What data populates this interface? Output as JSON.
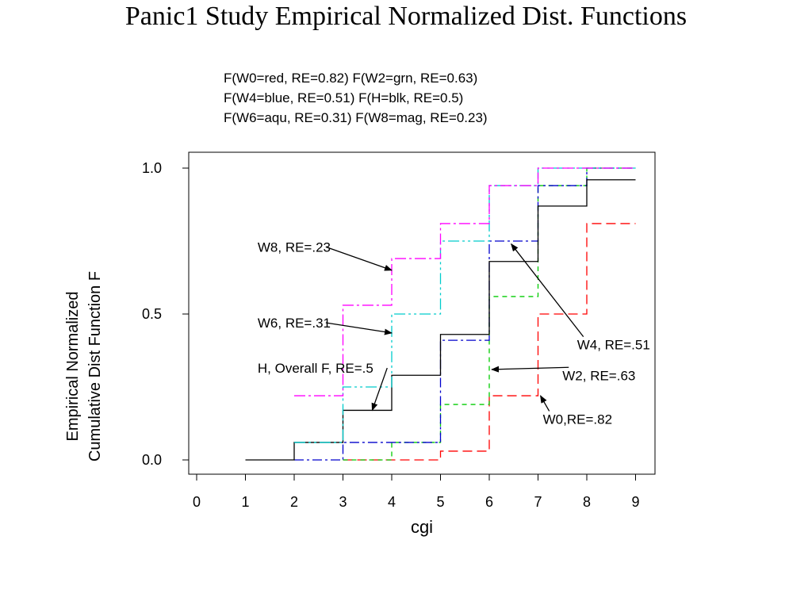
{
  "title": "Panic1 Study Empirical Normalized Dist. Functions",
  "subtitle_lines": [
    "F(W0=red, RE=0.82) F(W2=grn, RE=0.63)",
    "F(W4=blue, RE=0.51) F(H=blk, RE=0.5)",
    "F(W6=aqu, RE=0.31) F(W8=mag, RE=0.23)"
  ],
  "chart_data": {
    "type": "line",
    "step": true,
    "title": "Panic1 Study Empirical Normalized Dist. Functions",
    "xlabel": "cgi",
    "ylabel": [
      "Empirical Normalized",
      "Cumulative Dist Function F"
    ],
    "xlim": [
      0,
      9
    ],
    "ylim": [
      0,
      1
    ],
    "xticks": [
      0,
      1,
      2,
      3,
      4,
      5,
      6,
      7,
      8,
      9
    ],
    "yticks": [
      {
        "value": 0,
        "label": "0.0"
      },
      {
        "value": 0.5,
        "label": "0.5"
      },
      {
        "value": 1,
        "label": "1.0"
      }
    ],
    "series": [
      {
        "name": "W0",
        "color": "#ff0000",
        "dash": "12 6",
        "x": [
          3,
          5,
          6,
          7,
          8,
          9
        ],
        "y": [
          0.0,
          0.03,
          0.22,
          0.5,
          0.81,
          0.81
        ]
      },
      {
        "name": "W2",
        "color": "#00cc00",
        "dash": "6 5",
        "x": [
          3,
          4,
          5,
          6,
          7,
          8,
          9
        ],
        "y": [
          0.0,
          0.06,
          0.19,
          0.56,
          0.94,
          1.0,
          1.0
        ]
      },
      {
        "name": "W4",
        "color": "#0000cc",
        "dash": "12 4 3 4",
        "x": [
          2,
          3,
          5,
          6,
          7,
          8,
          9
        ],
        "y": [
          0.0,
          0.06,
          0.41,
          0.75,
          0.94,
          1.0,
          1.0
        ]
      },
      {
        "name": "H",
        "color": "#000000",
        "dash": "",
        "x": [
          1,
          2,
          3,
          4,
          5,
          6,
          7,
          8,
          9
        ],
        "y": [
          0.0,
          0.06,
          0.17,
          0.29,
          0.43,
          0.68,
          0.87,
          0.96,
          0.96
        ]
      },
      {
        "name": "W6",
        "color": "#00cccc",
        "dash": "14 4 3 4 3 4",
        "x": [
          2,
          3,
          4,
          5,
          6,
          7,
          8,
          9
        ],
        "y": [
          0.06,
          0.25,
          0.5,
          0.75,
          0.94,
          1.0,
          1.0,
          1.0
        ]
      },
      {
        "name": "W8",
        "color": "#ff00ff",
        "dash": "14 4 3 4",
        "x": [
          2,
          3,
          4,
          5,
          6,
          7,
          8,
          9
        ],
        "y": [
          0.22,
          0.53,
          0.69,
          0.81,
          0.94,
          1.0,
          1.0,
          1.0
        ]
      }
    ],
    "annotations": [
      {
        "text": "W8, RE=.23",
        "x": 1.25,
        "y": 0.73,
        "ax": 4.0,
        "ay": 0.65
      },
      {
        "text": "W6, RE=.31",
        "x": 1.25,
        "y": 0.47,
        "ax": 4.0,
        "ay": 0.435
      },
      {
        "text": "H, Overall F, RE=.5",
        "x": 1.25,
        "y": 0.315,
        "ax": 3.6,
        "ay": 0.17
      },
      {
        "text": "W4, RE=.51",
        "x": 7.8,
        "y": 0.395,
        "ax": 6.45,
        "ay": 0.74
      },
      {
        "text": "W2, RE=.63",
        "x": 7.5,
        "y": 0.29,
        "ax": 6.05,
        "ay": 0.31
      },
      {
        "text": "W0,RE=.82",
        "x": 7.1,
        "y": 0.14,
        "ax": 7.05,
        "ay": 0.22
      }
    ]
  }
}
